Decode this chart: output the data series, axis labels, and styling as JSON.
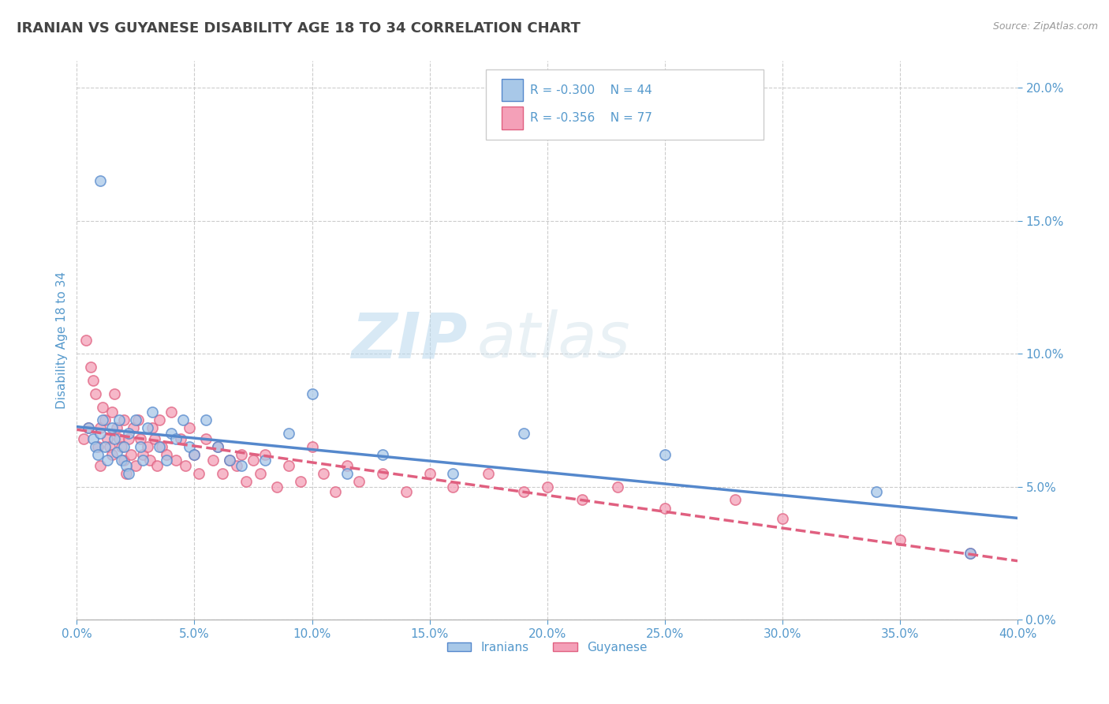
{
  "title": "IRANIAN VS GUYANESE DISABILITY AGE 18 TO 34 CORRELATION CHART",
  "source": "Source: ZipAtlas.com",
  "ylabel": "Disability Age 18 to 34",
  "xlim": [
    0.0,
    0.4
  ],
  "ylim": [
    0.0,
    0.21
  ],
  "xticks": [
    0.0,
    0.05,
    0.1,
    0.15,
    0.2,
    0.25,
    0.3,
    0.35,
    0.4
  ],
  "yticks": [
    0.0,
    0.05,
    0.1,
    0.15,
    0.2
  ],
  "iranian_R": -0.3,
  "iranian_N": 44,
  "guyanese_R": -0.356,
  "guyanese_N": 77,
  "iranian_color": "#a8c8e8",
  "guyanese_color": "#f4a0b8",
  "iranian_line_color": "#5588cc",
  "guyanese_line_color": "#e06080",
  "background_color": "#ffffff",
  "grid_color": "#cccccc",
  "title_color": "#444444",
  "axis_label_color": "#5599cc",
  "watermark_zip": "ZIP",
  "watermark_atlas": "atlas",
  "iranians_x": [
    0.005,
    0.007,
    0.008,
    0.009,
    0.01,
    0.01,
    0.011,
    0.012,
    0.013,
    0.015,
    0.016,
    0.017,
    0.018,
    0.019,
    0.02,
    0.021,
    0.022,
    0.022,
    0.025,
    0.027,
    0.028,
    0.03,
    0.032,
    0.035,
    0.038,
    0.04,
    0.042,
    0.045,
    0.048,
    0.05,
    0.055,
    0.06,
    0.065,
    0.07,
    0.08,
    0.09,
    0.1,
    0.115,
    0.13,
    0.16,
    0.19,
    0.25,
    0.34,
    0.38
  ],
  "iranians_y": [
    0.072,
    0.068,
    0.065,
    0.062,
    0.07,
    0.165,
    0.075,
    0.065,
    0.06,
    0.072,
    0.068,
    0.063,
    0.075,
    0.06,
    0.065,
    0.058,
    0.07,
    0.055,
    0.075,
    0.065,
    0.06,
    0.072,
    0.078,
    0.065,
    0.06,
    0.07,
    0.068,
    0.075,
    0.065,
    0.062,
    0.075,
    0.065,
    0.06,
    0.058,
    0.06,
    0.07,
    0.085,
    0.055,
    0.062,
    0.055,
    0.07,
    0.062,
    0.048,
    0.025
  ],
  "guyanese_x": [
    0.003,
    0.004,
    0.005,
    0.006,
    0.007,
    0.008,
    0.009,
    0.01,
    0.01,
    0.011,
    0.012,
    0.013,
    0.014,
    0.015,
    0.015,
    0.016,
    0.017,
    0.018,
    0.019,
    0.02,
    0.02,
    0.021,
    0.022,
    0.023,
    0.024,
    0.025,
    0.026,
    0.027,
    0.028,
    0.03,
    0.031,
    0.032,
    0.033,
    0.034,
    0.035,
    0.036,
    0.038,
    0.04,
    0.042,
    0.044,
    0.046,
    0.048,
    0.05,
    0.052,
    0.055,
    0.058,
    0.06,
    0.062,
    0.065,
    0.068,
    0.07,
    0.072,
    0.075,
    0.078,
    0.08,
    0.085,
    0.09,
    0.095,
    0.1,
    0.105,
    0.11,
    0.115,
    0.12,
    0.13,
    0.14,
    0.15,
    0.16,
    0.175,
    0.19,
    0.2,
    0.215,
    0.23,
    0.25,
    0.28,
    0.3,
    0.35,
    0.38
  ],
  "guyanese_y": [
    0.068,
    0.105,
    0.072,
    0.095,
    0.09,
    0.085,
    0.065,
    0.072,
    0.058,
    0.08,
    0.075,
    0.068,
    0.065,
    0.062,
    0.078,
    0.085,
    0.072,
    0.068,
    0.065,
    0.06,
    0.075,
    0.055,
    0.068,
    0.062,
    0.072,
    0.058,
    0.075,
    0.068,
    0.062,
    0.065,
    0.06,
    0.072,
    0.068,
    0.058,
    0.075,
    0.065,
    0.062,
    0.078,
    0.06,
    0.068,
    0.058,
    0.072,
    0.062,
    0.055,
    0.068,
    0.06,
    0.065,
    0.055,
    0.06,
    0.058,
    0.062,
    0.052,
    0.06,
    0.055,
    0.062,
    0.05,
    0.058,
    0.052,
    0.065,
    0.055,
    0.048,
    0.058,
    0.052,
    0.055,
    0.048,
    0.055,
    0.05,
    0.055,
    0.048,
    0.05,
    0.045,
    0.05,
    0.042,
    0.045,
    0.038,
    0.03,
    0.025
  ]
}
